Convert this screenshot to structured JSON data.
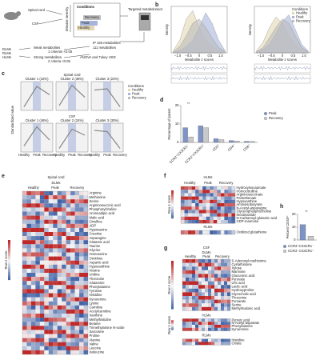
{
  "schematic": {
    "spinal_cord": "Spinal cord",
    "csf": "CSF",
    "disease_severity": "Disease severity",
    "conditions": "Conditions",
    "healthy": "Healthy",
    "peak": "Peak",
    "recovery": "Recovery",
    "targeted": "Targeted metabolomics",
    "weak": "Weak metabolites",
    "strong": "Strong metabolites",
    "groups": [
      "DLMs",
      "RLMs",
      "HLMs"
    ],
    "crit1": "1 criterion <0.05",
    "crit2": "2 criteria <0.05",
    "anova": "ANOVA and Tukey HSD",
    "ip155": "IP 155 metabolites",
    "m111": "111 metabolites"
  },
  "density": {
    "type": "area",
    "letter": "b",
    "ylabel": "Density",
    "xlabel": "Metabolite z scores",
    "xlim": [
      -1.3,
      1.3
    ],
    "ylim": [
      0,
      1.1
    ],
    "xticks": [
      {
        "value": -1,
        "label": "−1.0"
      },
      {
        "value": -0.5,
        "label": "−0.5"
      },
      0,
      {
        "value": 0.5,
        "label": "0.5"
      },
      {
        "value": 1,
        "label": "1.0"
      }
    ],
    "x": [
      -1.2,
      -0.9,
      -0.6,
      -0.3,
      0,
      0.3,
      0.6,
      0.9,
      1.2
    ],
    "legend_title": "Conditions",
    "plots": [
      {
        "series": [
          {
            "name": "Healthy",
            "color": "#e3d7b4",
            "values": [
              0.05,
              0.3,
              0.8,
              1.0,
              0.6,
              0.3,
              0.15,
              0.05,
              0.02
            ]
          },
          {
            "name": "Peak",
            "color": "#a7b5db",
            "values": [
              0.02,
              0.05,
              0.15,
              0.3,
              0.6,
              0.95,
              0.7,
              0.3,
              0.05
            ]
          },
          {
            "name": "Recovery",
            "color": "#bdbdbd",
            "values": [
              0.03,
              0.15,
              0.4,
              0.7,
              0.8,
              0.6,
              0.35,
              0.12,
              0.03
            ]
          }
        ]
      },
      {
        "series": [
          {
            "name": "Healthy",
            "color": "#e3d7b4",
            "values": [
              0.05,
              0.25,
              0.6,
              0.85,
              0.7,
              0.4,
              0.2,
              0.06,
              0.02
            ]
          },
          {
            "name": "Peak",
            "color": "#a7b5db",
            "values": [
              0.02,
              0.08,
              0.2,
              0.45,
              0.75,
              0.9,
              0.55,
              0.2,
              0.04
            ]
          },
          {
            "name": "Recovery",
            "color": "#bdbdbd",
            "values": [
              0.03,
              0.12,
              0.35,
              0.6,
              0.8,
              0.7,
              0.4,
              0.12,
              0.03
            ]
          }
        ]
      }
    ]
  },
  "clusters": {
    "type": "line",
    "letter": "c",
    "ylabel": "Standardized value",
    "legend_title": "Conditions",
    "conditions": [
      "Healthy",
      "Peak",
      "Recovery"
    ],
    "condition_colors": [
      "#e3d7b4",
      "#a7b5db",
      "#bdbdbd"
    ],
    "ylim": [
      -1.2,
      1.2
    ],
    "groups": [
      {
        "title": "Spinal cord",
        "clusters": [
          {
            "name": "Cluster 1 (42%)",
            "values": [
              -0.9,
              0.8,
              0.1
            ]
          },
          {
            "name": "Cluster 2 (36%)",
            "values": [
              -0.8,
              0.9,
              -0.1
            ]
          },
          {
            "name": "Cluster 3 (22%)",
            "values": [
              0.5,
              0.6,
              -0.9
            ]
          }
        ]
      },
      {
        "title": "CSF",
        "clusters": [
          {
            "name": "Cluster 1 (46%)",
            "values": [
              -0.7,
              0.9,
              -0.2
            ]
          },
          {
            "name": "Cluster 2 (24%)",
            "values": [
              -0.9,
              0.7,
              0.2
            ]
          },
          {
            "name": "Cluster 3 (30%)",
            "values": [
              0.6,
              0.5,
              -0.9
            ]
          }
        ]
      }
    ]
  },
  "bars": {
    "type": "bar",
    "letter": "d",
    "ylabel": "Percentage of parent",
    "sig": "**",
    "ylim": [
      0,
      20
    ],
    "yticks": [
      0,
      10,
      20
    ],
    "categories": [
      "CCR2⁺CX3CR1⁻",
      "CCR2⁺CX3CR1⁺",
      "CD3⁺",
      "CD4⁺",
      "CD8⁺"
    ],
    "series": [
      {
        "name": "Peak",
        "color": "#7f94c6",
        "values": [
          8,
          9,
          2,
          1,
          0.6
        ]
      },
      {
        "name": "Recovery",
        "color": "#c9c9c9",
        "values": [
          3,
          8,
          1.5,
          0.8,
          0.5
        ]
      }
    ]
  },
  "heat_e": {
    "letter": "e",
    "title": "Spinal cord",
    "subtitle": "DLMs",
    "columns": [
      "Healthy",
      "Peak",
      "Recovery"
    ],
    "scale": "Row z score",
    "rows": [
      "Arginine",
      "Methionine",
      "Serine",
      "Argininosuccinic acid",
      "Phosphorylcholine",
      "Aminoadipic acid",
      "Malic acid",
      "Citrulline",
      "ADP",
      "Hypotaurine",
      "Creatine",
      "Asparagine",
      "Glutamic acid",
      "Taurine",
      "Glycine",
      "Homoserine",
      "Ornithine",
      "Aspartic acid",
      "Hypoxanthine",
      "Inosine",
      "Uridine",
      "Threonine",
      "Glutamine",
      "Phenylalanine",
      "Tyrosine",
      "Histidine",
      "Kynurenine",
      "Lysine",
      "Carnitine",
      "Acetylcarnitine",
      "Xanthine",
      "Methylhistidine",
      "Betaine",
      "Trimethylamine N-oxide",
      "Sarcosine",
      "Proline",
      "Alanine",
      "Valine",
      "Leucine",
      "Isoleucine"
    ]
  },
  "heat_f": {
    "letter": "f",
    "title": "HLMs",
    "columns": [
      "Healthy",
      "Peak",
      "Recovery"
    ],
    "scale": "Row z score",
    "rows": [
      "Hydroxyisocaproate",
      "Homocitrulline",
      "Argininosuccinate",
      "Pantothenate",
      "Hypoxanthine",
      "Aminoisobutyrate",
      "N-Acetyl-asparagine",
      "Glycerophosphocholine",
      "Nicotinamide",
      "N-Carbamoyl-glutamic acid",
      "GDP-mannose"
    ],
    "rlm_title": "RLMs",
    "rlm_rows": [
      "Oxidized glutathione"
    ]
  },
  "heat_g": {
    "letter": "g",
    "title": "CSF",
    "columns": [
      "Healthy",
      "Peak",
      "Recovery"
    ],
    "scale": "Row z score",
    "blocks": [
      {
        "title": "DLMs",
        "rows": [
          "S-Adenosyl-methionine",
          "Cystathionine",
          "Xylose",
          "Mannose",
          "Glucuronic acid",
          "Pyruvate",
          "Uric acid",
          "Lactic acid",
          "Hydroxyproline",
          "Glycocholic acid",
          "Threonine",
          "Fumarate",
          "Serine",
          "Methylmalonic acid"
        ]
      },
      {
        "title": "HLMs",
        "rows": [
          "Pyruvic acid",
          "N-Acetyl-aspartate",
          "Phenylalanine",
          "Kynurenine"
        ]
      },
      {
        "title": "RLMs",
        "rows": [
          "Histidine",
          "Citrate"
        ]
      }
    ]
  },
  "cd45": {
    "type": "bar",
    "letter": "h",
    "ylabel": "Percent CD45ʰⁱ",
    "sig": "**",
    "ylim": [
      0,
      20
    ],
    "yticks": [
      0,
      10,
      20
    ],
    "categories": [
      "CCR2⁺CX3CR1⁻",
      "CCR2⁻CX3CR1⁺"
    ],
    "colors": [
      "#7f94c6",
      "#c9c9c9"
    ],
    "values": [
      12,
      3
    ]
  }
}
